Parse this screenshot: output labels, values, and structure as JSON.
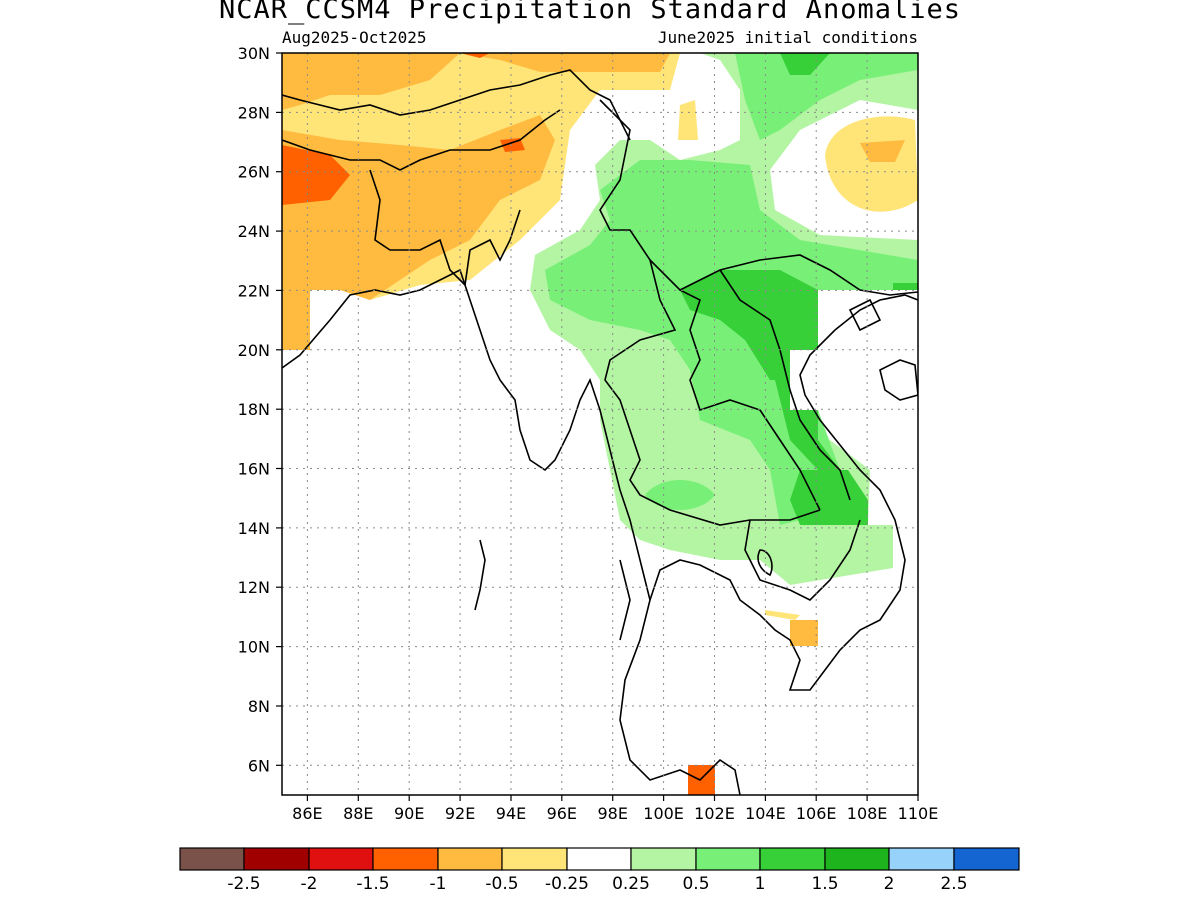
{
  "title": "NCAR_CCSM4 Precipitation Standard Anomalies",
  "subtitle_left": "Aug2025-Oct2025",
  "subtitle_right": "June2025 initial conditions",
  "map": {
    "lon_range": [
      85,
      110
    ],
    "lat_range": [
      5,
      30
    ],
    "lat_ticks": [
      "30N",
      "28N",
      "26N",
      "24N",
      "22N",
      "20N",
      "18N",
      "16N",
      "14N",
      "12N",
      "10N",
      "8N",
      "6N"
    ],
    "lon_ticks": [
      "86E",
      "88E",
      "90E",
      "92E",
      "94E",
      "96E",
      "98E",
      "100E",
      "102E",
      "104E",
      "106E",
      "108E",
      "110E"
    ],
    "grid": true
  },
  "colorbar": {
    "colors": [
      "#7b5249",
      "#a00000",
      "#e01010",
      "#ff6000",
      "#ffbb40",
      "#ffe478",
      "#ffffff",
      "#b4f5a4",
      "#78f078",
      "#38d038",
      "#1eb41e",
      "#96d2fa",
      "#1464d2"
    ],
    "labels": [
      "-2.5",
      "-2",
      "-1.5",
      "-1",
      "-0.5",
      "-0.25",
      "0.25",
      "0.5",
      "1",
      "1.5",
      "2",
      "2.5"
    ]
  }
}
